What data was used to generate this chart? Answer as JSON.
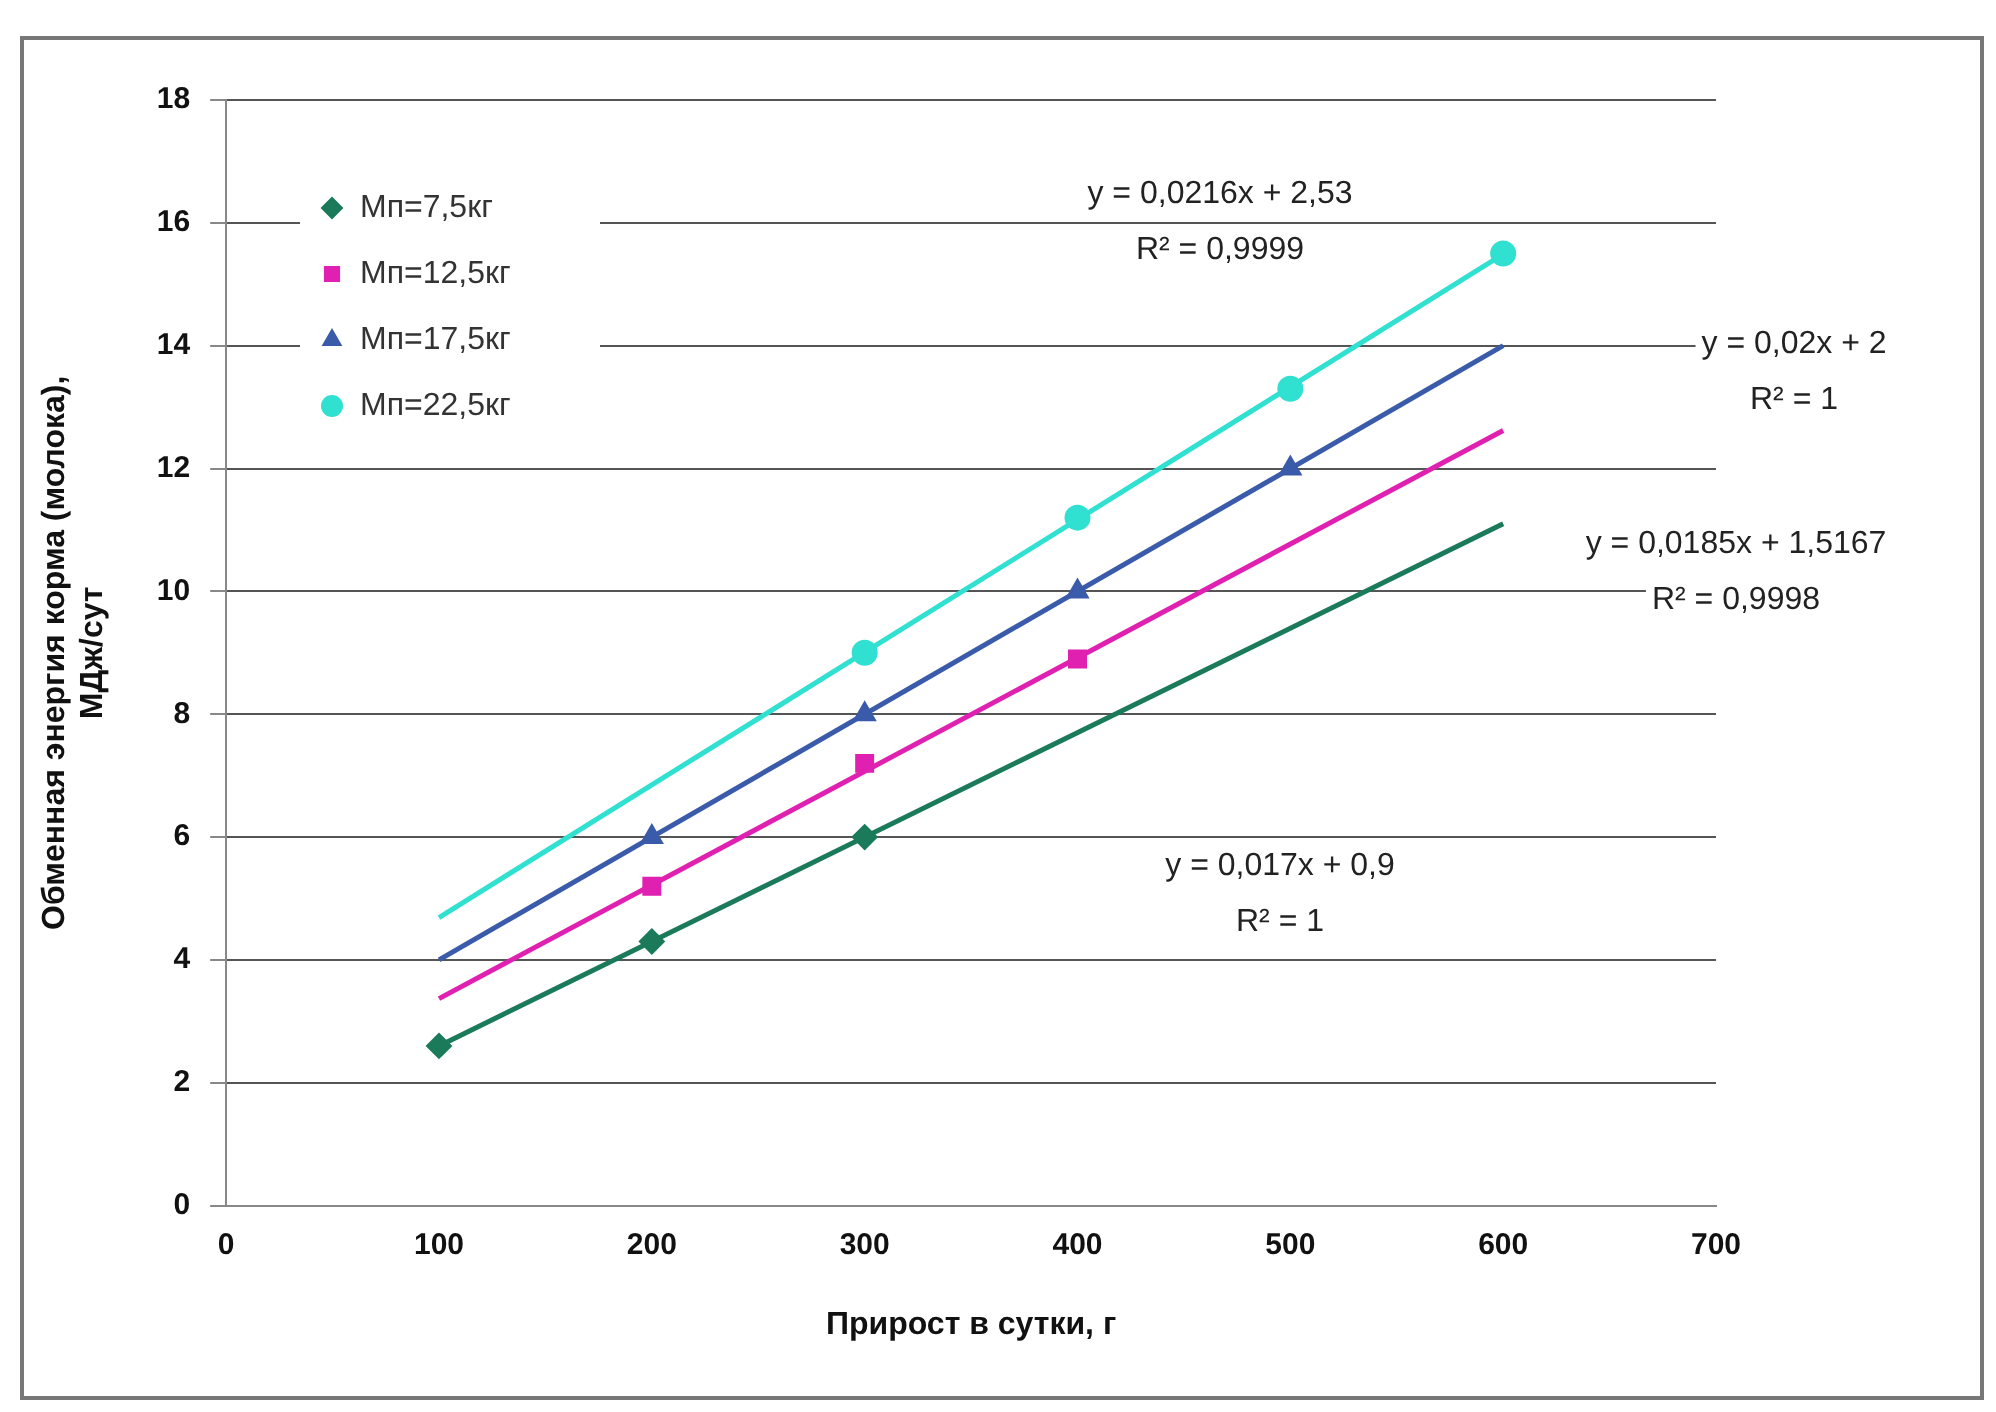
{
  "chart_data": {
    "type": "scatter",
    "xlabel": "Прирост в сутки, г",
    "ylabel": "Обменная энергия корма (молока),\nМДж/сут",
    "xlim": [
      0,
      700
    ],
    "xticks": [
      0,
      100,
      200,
      300,
      400,
      500,
      600,
      700
    ],
    "ylim": [
      0,
      18
    ],
    "yticks": [
      0,
      2,
      4,
      6,
      8,
      10,
      12,
      14,
      16,
      18
    ],
    "grid": "y",
    "legend": "top left",
    "series": [
      {
        "name": "Мп=7,5кг",
        "marker": "diamond",
        "color": "#1a7a5a",
        "x": [
          100,
          200,
          300
        ],
        "values": [
          2.6,
          4.3,
          6.0
        ]
      },
      {
        "name": "Мп=12,5кг",
        "marker": "square",
        "color": "#e020b0",
        "x": [
          200,
          300,
          400
        ],
        "values": [
          5.2,
          7.2,
          8.9
        ]
      },
      {
        "name": "Мп=17,5кг",
        "marker": "triangle",
        "color": "#3a5aaa",
        "x": [
          200,
          300,
          400,
          500
        ],
        "values": [
          6,
          8,
          10,
          12
        ]
      },
      {
        "name": "Мп=22,5кг",
        "marker": "circle",
        "color": "#30e0d0",
        "x": [
          300,
          400,
          500,
          600
        ],
        "values": [
          9.0,
          11.2,
          13.3,
          15.5
        ]
      },
      {
        "type": "line",
        "color": "#1a7a5a",
        "x": [
          100,
          600
        ],
        "values": [
          2.6,
          11.1
        ]
      },
      {
        "type": "line",
        "color": "#e020b0",
        "x": [
          100,
          600
        ],
        "values": [
          3.37,
          12.62
        ]
      },
      {
        "type": "line",
        "color": "#3a5aaa",
        "x": [
          100,
          600
        ],
        "values": [
          4,
          14
        ]
      },
      {
        "type": "line",
        "color": "#30e0d0",
        "x": [
          100,
          600
        ],
        "values": [
          4.69,
          15.49
        ]
      }
    ],
    "annotations": [
      "y = 0,0216x + 2,53\nR² = 0,9999",
      "y = 0,02x + 2\nR² = 1",
      "y = 0,0185x + 1,5167\nR² = 0,9998",
      "y = 0,017x + 0,9\nR² = 1"
    ]
  }
}
